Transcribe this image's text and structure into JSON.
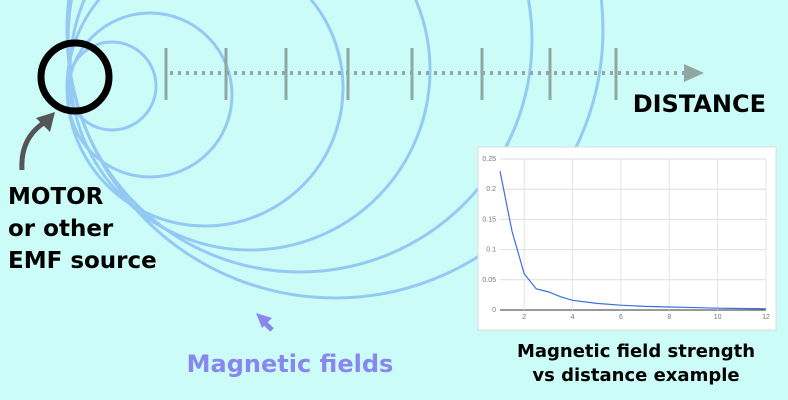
{
  "source_label": [
    "MOTOR",
    "or other",
    "EMF source"
  ],
  "axis_label": "DISTANCE",
  "fields_label": "Magnetic fields",
  "caption": [
    "Magnetic field strength",
    "vs distance example"
  ],
  "chart_data": {
    "type": "line",
    "x": [
      1,
      1.5,
      2,
      2.5,
      3,
      3.5,
      4,
      5,
      6,
      7,
      8,
      9,
      10,
      11,
      12
    ],
    "series": [
      {
        "color": "#3b6fe0",
        "values": [
          0.23,
          0.13,
          0.06,
          0.035,
          0.03,
          0.022,
          0.016,
          0.011,
          0.008,
          0.006,
          0.005,
          0.004,
          0.003,
          0.0025,
          0.002
        ]
      }
    ],
    "xlim": [
      1,
      12
    ],
    "ylim": [
      0,
      0.25
    ],
    "xticks": [
      2,
      4,
      6,
      8,
      10,
      12
    ],
    "yticks": [
      0,
      0.05,
      0.1,
      0.15,
      0.2,
      0.25
    ],
    "grid": true
  }
}
